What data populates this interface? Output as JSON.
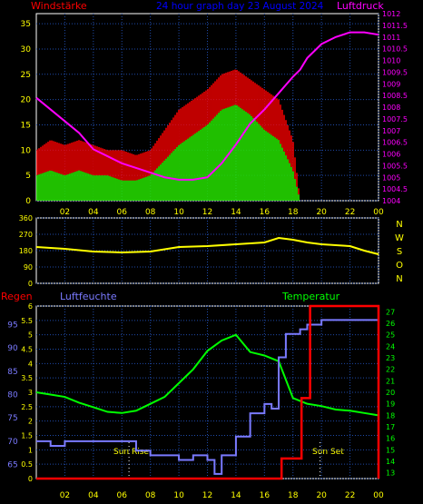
{
  "header": {
    "title": "24 hour graph day  23 August 2024",
    "left_label": "Windstärke",
    "right_label": "Luftdruck"
  },
  "colors": {
    "grid": "#1f4aa8",
    "tick": "#ffff00",
    "wind_gust": "#ff0000",
    "wind_avg": "#00ff00",
    "pressure": "#ff00ff",
    "direction": "#ffff00",
    "rain": "#ff0000",
    "humidity": "#7a7aff",
    "temperature": "#00ff00",
    "title": "#0000ff",
    "sun": "#ffff00"
  },
  "x_tick_labels": [
    "02",
    "04",
    "06",
    "08",
    "10",
    "12",
    "14",
    "16",
    "18",
    "20",
    "22",
    "00"
  ],
  "direction_panel": {
    "y_ticks": [
      "360",
      "270",
      "180",
      "90",
      "0"
    ],
    "compass": [
      "N",
      "W",
      "S",
      "O",
      "N"
    ]
  },
  "bottom_panel": {
    "rain_label": "Regen",
    "humidity_label": "Luftfeuchte",
    "temperature_label": "Temperatur",
    "sun_rise": "Sun Rise",
    "sun_set": "Sun Set"
  },
  "chart_data": [
    {
      "type": "line",
      "name": "wind-pressure",
      "x_hours": [
        0,
        1,
        2,
        3,
        4,
        5,
        6,
        7,
        8,
        9,
        10,
        11,
        12,
        13,
        14,
        15,
        16,
        17,
        18,
        18.5,
        19,
        20,
        21,
        22,
        23,
        24
      ],
      "ylim_left": [
        0,
        37
      ],
      "y_ticks_left": [
        0,
        5,
        10,
        15,
        20,
        25,
        30,
        35
      ],
      "ylim_right": [
        1004,
        1012
      ],
      "y_ticks_right": [
        "1012",
        "1011.5",
        "1011",
        "1010.5",
        "1010",
        "1009.5",
        "1009",
        "1008.5",
        "1008",
        "1007.5",
        "1007",
        "1006.5",
        "1006",
        "1005.5",
        "1005",
        "1004.5",
        "1004"
      ],
      "series": [
        {
          "name": "Windstärke",
          "values": [
            10,
            12,
            11,
            12,
            11,
            10,
            10,
            9,
            10,
            14,
            18,
            20,
            22,
            25,
            26,
            24,
            22,
            20,
            12,
            0,
            0,
            0,
            0,
            0,
            0,
            0
          ]
        },
        {
          "name": "",
          "values": [
            5,
            6,
            5,
            6,
            5,
            5,
            4,
            4,
            5,
            8,
            11,
            13,
            15,
            18,
            19,
            17,
            14,
            12,
            6,
            0,
            0,
            0,
            0,
            0,
            0,
            0
          ]
        },
        {
          "name": "Luftdruck",
          "values": [
            1008.4,
            1007.9,
            1007.4,
            1006.9,
            1006.2,
            1005.9,
            1005.6,
            1005.4,
            1005.2,
            1005.0,
            1004.9,
            1004.9,
            1005.0,
            1005.6,
            1006.4,
            1007.3,
            1007.9,
            1008.6,
            1009.3,
            1009.6,
            1010.1,
            1010.7,
            1011.0,
            1011.2,
            1011.2,
            1011.1
          ]
        }
      ]
    },
    {
      "type": "line",
      "name": "wind-direction",
      "x_hours": [
        0,
        2,
        4,
        6,
        8,
        10,
        12,
        14,
        16,
        17,
        18,
        19,
        20,
        22,
        23,
        24
      ],
      "ylim": [
        0,
        360
      ],
      "series": [
        {
          "name": "",
          "values": [
            200,
            190,
            175,
            170,
            175,
            200,
            205,
            215,
            225,
            250,
            240,
            225,
            215,
            205,
            180,
            160
          ]
        }
      ]
    },
    {
      "type": "line",
      "name": "rain-humidity-temperature",
      "ylim_rain": [
        0,
        6
      ],
      "y_ticks_rain": [
        0,
        0.5,
        1,
        1.5,
        2,
        2.5,
        3,
        3.5,
        4,
        4.5,
        5,
        5.5,
        6
      ],
      "ylim_humidity": [
        62,
        99
      ],
      "y_ticks_humidity": [
        65,
        70,
        75,
        80,
        85,
        90,
        95
      ],
      "ylim_temperature": [
        12.5,
        27.5
      ],
      "y_ticks_temperature": [
        13,
        14,
        15,
        16,
        17,
        18,
        19,
        20,
        21,
        22,
        23,
        24,
        25,
        26,
        27
      ],
      "series": [
        {
          "name": "Regen",
          "x_hours": [
            0,
            17.2,
            17.2,
            18.6,
            18.6,
            19.2,
            19.2,
            24,
            24
          ],
          "values": [
            0,
            0,
            0.7,
            0.7,
            2.8,
            2.8,
            6,
            6,
            0
          ]
        },
        {
          "name": "Luftfeuchte",
          "x_hours": [
            0,
            1,
            2,
            3,
            4,
            5,
            6,
            7,
            8,
            9,
            10,
            11,
            12,
            12.5,
            13,
            14,
            15,
            16,
            16.5,
            17,
            17.5,
            18,
            18.5,
            19,
            20,
            21,
            22,
            23,
            24
          ],
          "values": [
            70,
            69,
            70,
            70,
            70,
            70,
            70,
            68,
            67,
            67,
            66,
            67,
            66,
            63,
            67,
            71,
            76,
            78,
            77,
            88,
            93,
            93,
            94,
            95,
            96,
            96,
            96,
            96,
            96
          ]
        },
        {
          "name": "Temperatur",
          "x_hours": [
            0,
            1,
            2,
            3,
            4,
            5,
            6,
            7,
            8,
            9,
            10,
            11,
            12,
            13,
            14,
            15,
            16,
            17,
            18,
            19,
            20,
            21,
            22,
            23,
            24
          ],
          "values": [
            20,
            19.8,
            19.6,
            19.1,
            18.7,
            18.3,
            18.2,
            18.4,
            19.0,
            19.6,
            20.8,
            22.0,
            23.6,
            24.5,
            25.0,
            23.5,
            23.2,
            22.7,
            19.5,
            19.0,
            18.8,
            18.5,
            18.4,
            18.2,
            18.0
          ]
        }
      ]
    }
  ]
}
